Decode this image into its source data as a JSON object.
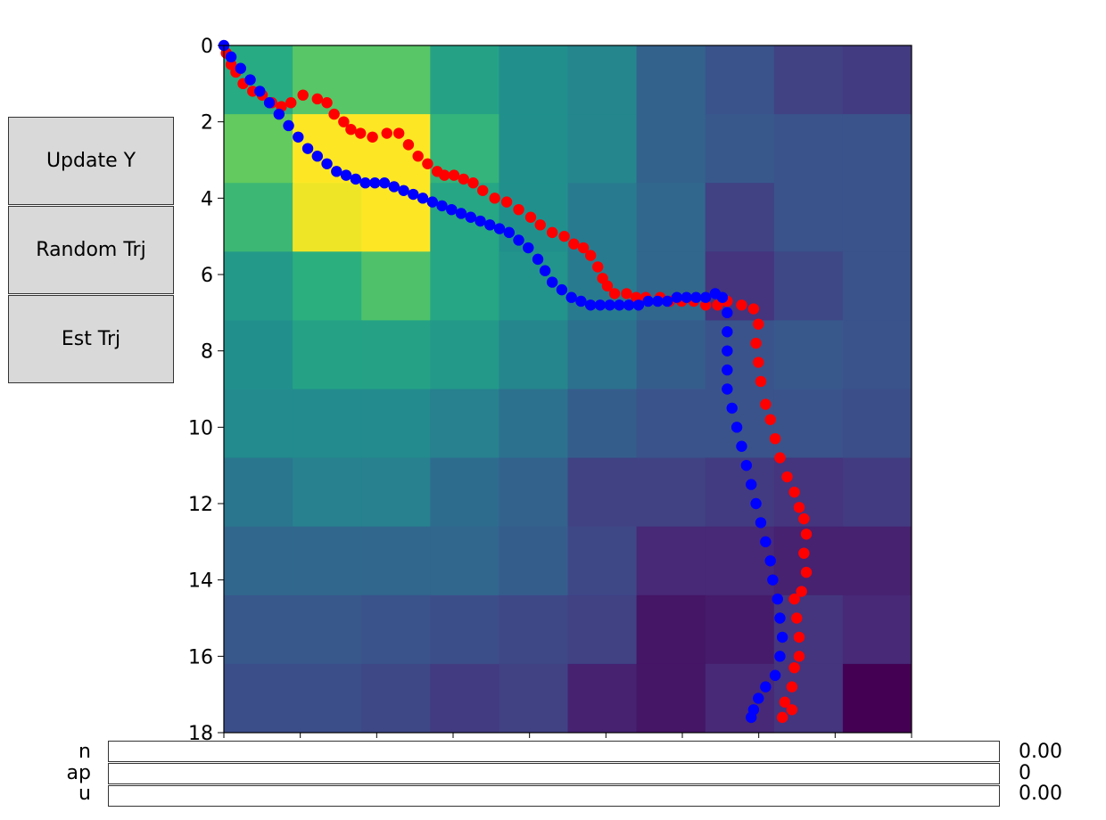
{
  "buttons": {
    "update_y": "Update Y",
    "random_trj": "Random Trj",
    "est_trj": "Est Trj"
  },
  "sliders": [
    {
      "label": "n",
      "value_text": "0.00",
      "fraction": 0
    },
    {
      "label": "ap",
      "value_text": "0",
      "fraction": 0
    },
    {
      "label": "u",
      "value_text": "0.00",
      "fraction": 0
    }
  ],
  "chart_data": {
    "type": "heatmap",
    "title": "",
    "xlabel": "",
    "ylabel": "",
    "ylim": [
      18,
      0
    ],
    "xlim": [
      0,
      18
    ],
    "yticks": [
      0,
      2,
      4,
      6,
      8,
      10,
      12,
      14,
      16,
      18
    ],
    "xtick_labels_visible": false,
    "grid": false,
    "colormap": "viridis",
    "cell_size": 1.8,
    "grid_values": [
      [
        0.62,
        0.74,
        0.74,
        0.58,
        0.5,
        0.46,
        0.32,
        0.26,
        0.2,
        0.18
      ],
      [
        0.76,
        1.0,
        1.0,
        0.66,
        0.5,
        0.46,
        0.32,
        0.28,
        0.26,
        0.26
      ],
      [
        0.68,
        0.98,
        1.0,
        0.6,
        0.5,
        0.42,
        0.34,
        0.2,
        0.26,
        0.26
      ],
      [
        0.54,
        0.64,
        0.72,
        0.6,
        0.52,
        0.42,
        0.34,
        0.16,
        0.22,
        0.26
      ],
      [
        0.5,
        0.58,
        0.58,
        0.54,
        0.46,
        0.38,
        0.3,
        0.26,
        0.28,
        0.26
      ],
      [
        0.48,
        0.48,
        0.48,
        0.44,
        0.38,
        0.3,
        0.26,
        0.26,
        0.26,
        0.24
      ],
      [
        0.4,
        0.44,
        0.44,
        0.36,
        0.32,
        0.2,
        0.2,
        0.18,
        0.16,
        0.18
      ],
      [
        0.34,
        0.34,
        0.34,
        0.34,
        0.3,
        0.22,
        0.12,
        0.12,
        0.1,
        0.1
      ],
      [
        0.28,
        0.28,
        0.26,
        0.24,
        0.22,
        0.2,
        0.06,
        0.08,
        0.16,
        0.12
      ],
      [
        0.24,
        0.24,
        0.22,
        0.18,
        0.2,
        0.1,
        0.06,
        0.12,
        0.16,
        0.0
      ]
    ],
    "series": [
      {
        "color": "#ff0000",
        "points": [
          [
            0.1,
            0.2
          ],
          [
            0.3,
            0.5
          ],
          [
            0.5,
            0.7
          ],
          [
            0.8,
            1.0
          ],
          [
            1.2,
            1.2
          ],
          [
            1.6,
            1.3
          ],
          [
            2.0,
            1.5
          ],
          [
            2.4,
            1.6
          ],
          [
            2.8,
            1.5
          ],
          [
            3.3,
            1.3
          ],
          [
            3.9,
            1.4
          ],
          [
            4.3,
            1.5
          ],
          [
            4.6,
            1.8
          ],
          [
            5.0,
            2.0
          ],
          [
            5.3,
            2.2
          ],
          [
            5.7,
            2.3
          ],
          [
            6.2,
            2.4
          ],
          [
            6.8,
            2.3
          ],
          [
            7.3,
            2.3
          ],
          [
            7.7,
            2.6
          ],
          [
            8.1,
            2.9
          ],
          [
            8.5,
            3.1
          ],
          [
            8.9,
            3.3
          ],
          [
            9.2,
            3.4
          ],
          [
            9.6,
            3.4
          ],
          [
            10.0,
            3.5
          ],
          [
            10.4,
            3.6
          ],
          [
            10.8,
            3.8
          ],
          [
            11.3,
            4.0
          ],
          [
            11.8,
            4.1
          ],
          [
            12.3,
            4.3
          ],
          [
            12.8,
            4.5
          ],
          [
            13.2,
            4.7
          ],
          [
            13.7,
            4.9
          ],
          [
            14.2,
            5.0
          ],
          [
            14.6,
            5.2
          ],
          [
            15.0,
            5.3
          ],
          [
            15.3,
            5.5
          ],
          [
            15.6,
            5.8
          ],
          [
            15.8,
            6.1
          ],
          [
            16.0,
            6.3
          ],
          [
            16.3,
            6.5
          ],
          [
            16.8,
            6.5
          ],
          [
            17.2,
            6.6
          ],
          [
            17.6,
            6.6
          ],
          [
            18.2,
            6.6
          ],
          [
            18.6,
            6.7
          ],
          [
            19.1,
            6.7
          ],
          [
            19.6,
            6.7
          ],
          [
            20.1,
            6.8
          ],
          [
            20.6,
            6.8
          ],
          [
            21.0,
            6.7
          ],
          [
            21.6,
            6.8
          ],
          [
            22.1,
            6.9
          ],
          [
            22.3,
            7.3
          ],
          [
            22.2,
            7.8
          ],
          [
            22.3,
            8.3
          ],
          [
            22.4,
            8.8
          ],
          [
            22.6,
            9.4
          ],
          [
            22.8,
            9.8
          ],
          [
            23.0,
            10.3
          ],
          [
            23.2,
            10.8
          ],
          [
            23.5,
            11.3
          ],
          [
            23.8,
            11.7
          ],
          [
            24.0,
            12.1
          ],
          [
            24.2,
            12.4
          ],
          [
            24.3,
            12.8
          ],
          [
            24.2,
            13.3
          ],
          [
            24.3,
            13.8
          ],
          [
            24.1,
            14.3
          ],
          [
            23.8,
            14.5
          ],
          [
            23.9,
            15.0
          ],
          [
            24.0,
            15.5
          ],
          [
            24.0,
            16.0
          ],
          [
            23.8,
            16.3
          ],
          [
            23.7,
            16.8
          ],
          [
            23.4,
            17.2
          ],
          [
            23.7,
            17.4
          ],
          [
            23.3,
            17.6
          ]
        ]
      },
      {
        "color": "#0000ff",
        "points": [
          [
            0.0,
            0.0
          ],
          [
            0.3,
            0.3
          ],
          [
            0.7,
            0.6
          ],
          [
            1.1,
            0.9
          ],
          [
            1.5,
            1.2
          ],
          [
            1.9,
            1.5
          ],
          [
            2.3,
            1.8
          ],
          [
            2.7,
            2.1
          ],
          [
            3.1,
            2.4
          ],
          [
            3.5,
            2.7
          ],
          [
            3.9,
            2.9
          ],
          [
            4.3,
            3.1
          ],
          [
            4.7,
            3.3
          ],
          [
            5.1,
            3.4
          ],
          [
            5.5,
            3.5
          ],
          [
            5.9,
            3.6
          ],
          [
            6.3,
            3.6
          ],
          [
            6.7,
            3.6
          ],
          [
            7.1,
            3.7
          ],
          [
            7.5,
            3.8
          ],
          [
            7.9,
            3.9
          ],
          [
            8.3,
            4.0
          ],
          [
            8.7,
            4.1
          ],
          [
            9.1,
            4.2
          ],
          [
            9.5,
            4.3
          ],
          [
            9.9,
            4.4
          ],
          [
            10.3,
            4.5
          ],
          [
            10.7,
            4.6
          ],
          [
            11.1,
            4.7
          ],
          [
            11.5,
            4.8
          ],
          [
            11.9,
            4.9
          ],
          [
            12.3,
            5.1
          ],
          [
            12.7,
            5.3
          ],
          [
            13.1,
            5.6
          ],
          [
            13.4,
            5.9
          ],
          [
            13.7,
            6.2
          ],
          [
            14.1,
            6.4
          ],
          [
            14.5,
            6.6
          ],
          [
            14.9,
            6.7
          ],
          [
            15.3,
            6.8
          ],
          [
            15.7,
            6.8
          ],
          [
            16.1,
            6.8
          ],
          [
            16.5,
            6.8
          ],
          [
            16.9,
            6.8
          ],
          [
            17.3,
            6.8
          ],
          [
            17.7,
            6.7
          ],
          [
            18.1,
            6.7
          ],
          [
            18.5,
            6.7
          ],
          [
            18.9,
            6.6
          ],
          [
            19.3,
            6.6
          ],
          [
            19.7,
            6.6
          ],
          [
            20.1,
            6.6
          ],
          [
            20.5,
            6.5
          ],
          [
            20.8,
            6.6
          ],
          [
            21.0,
            7.0
          ],
          [
            21.0,
            7.5
          ],
          [
            21.0,
            8.0
          ],
          [
            21.0,
            8.5
          ],
          [
            21.0,
            9.0
          ],
          [
            21.2,
            9.5
          ],
          [
            21.4,
            10.0
          ],
          [
            21.6,
            10.5
          ],
          [
            21.8,
            11.0
          ],
          [
            22.0,
            11.5
          ],
          [
            22.2,
            12.0
          ],
          [
            22.4,
            12.5
          ],
          [
            22.6,
            13.0
          ],
          [
            22.8,
            13.5
          ],
          [
            22.9,
            14.0
          ],
          [
            23.1,
            14.5
          ],
          [
            23.2,
            15.0
          ],
          [
            23.3,
            15.5
          ],
          [
            23.2,
            16.0
          ],
          [
            23.0,
            16.5
          ],
          [
            22.6,
            16.8
          ],
          [
            22.3,
            17.1
          ],
          [
            22.1,
            17.4
          ],
          [
            22.0,
            17.6
          ]
        ]
      }
    ]
  }
}
